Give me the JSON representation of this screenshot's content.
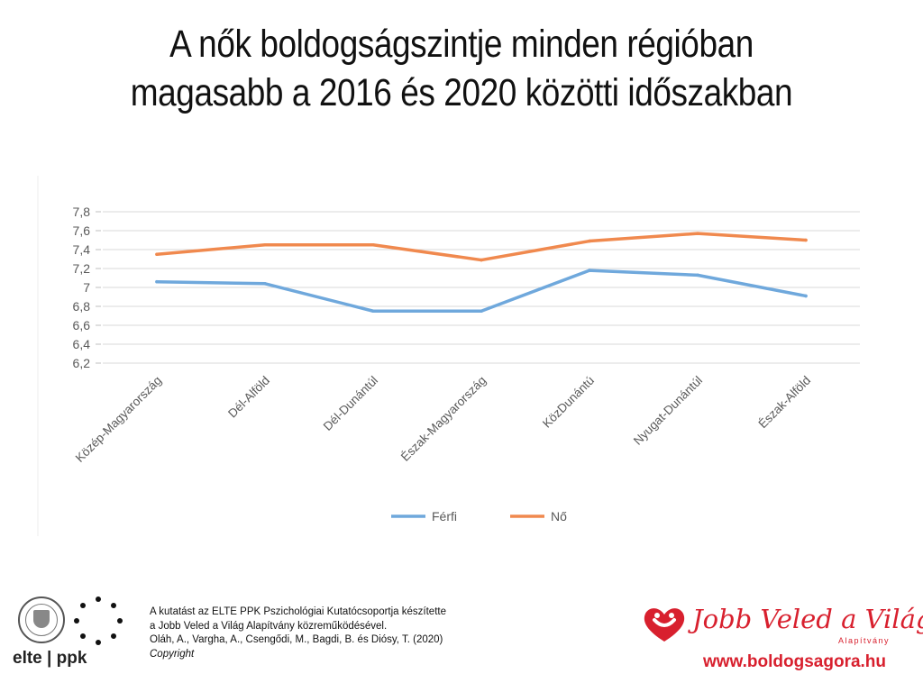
{
  "title": {
    "line1": "A nők boldogságszintje minden régióban",
    "line2": "magasabb a 2016 és 2020 közötti időszakban"
  },
  "chart_data": {
    "type": "line",
    "categories": [
      "Közép-Magyarország",
      "Dél-Alföld",
      "Dél-Dunántúl",
      "Észak-Magyarország",
      "KözDunántú",
      "Nyugat-Dunántúl",
      "Észak-Alföld"
    ],
    "series": [
      {
        "name": "Férfi",
        "color": "#6fa8dc",
        "values": [
          7.06,
          7.04,
          6.75,
          6.75,
          7.18,
          7.13,
          6.91
        ]
      },
      {
        "name": "Nő",
        "color": "#f0894e",
        "values": [
          7.35,
          7.45,
          7.45,
          7.29,
          7.49,
          7.57,
          7.5
        ]
      }
    ],
    "y_ticks": [
      "7,8",
      "7,6",
      "7,4",
      "7,2",
      "7",
      "6,8",
      "6,6",
      "6,4",
      "6,2"
    ],
    "ylim": [
      6.2,
      7.8
    ],
    "grid": true,
    "legend_position": "bottom"
  },
  "footer": {
    "logo_text": "elte | ppk",
    "credit_line1": "A kutatást az ELTE PPK Pszichológiai Kutatócsoportja készítette",
    "credit_line2": "a Jobb Veled a Világ Alapítvány közreműködésével.",
    "credit_line3": "Oláh, A., Vargha, A., Csengődi, M., Bagdi, B. és Diósy, T.  (2020)",
    "copyright": "Copyright",
    "brand_name": "Jobb Veled a Világ",
    "brand_sub": "Alapítvány",
    "brand_url": "www.boldogsagora.hu",
    "brand_color": "#d8202e"
  }
}
